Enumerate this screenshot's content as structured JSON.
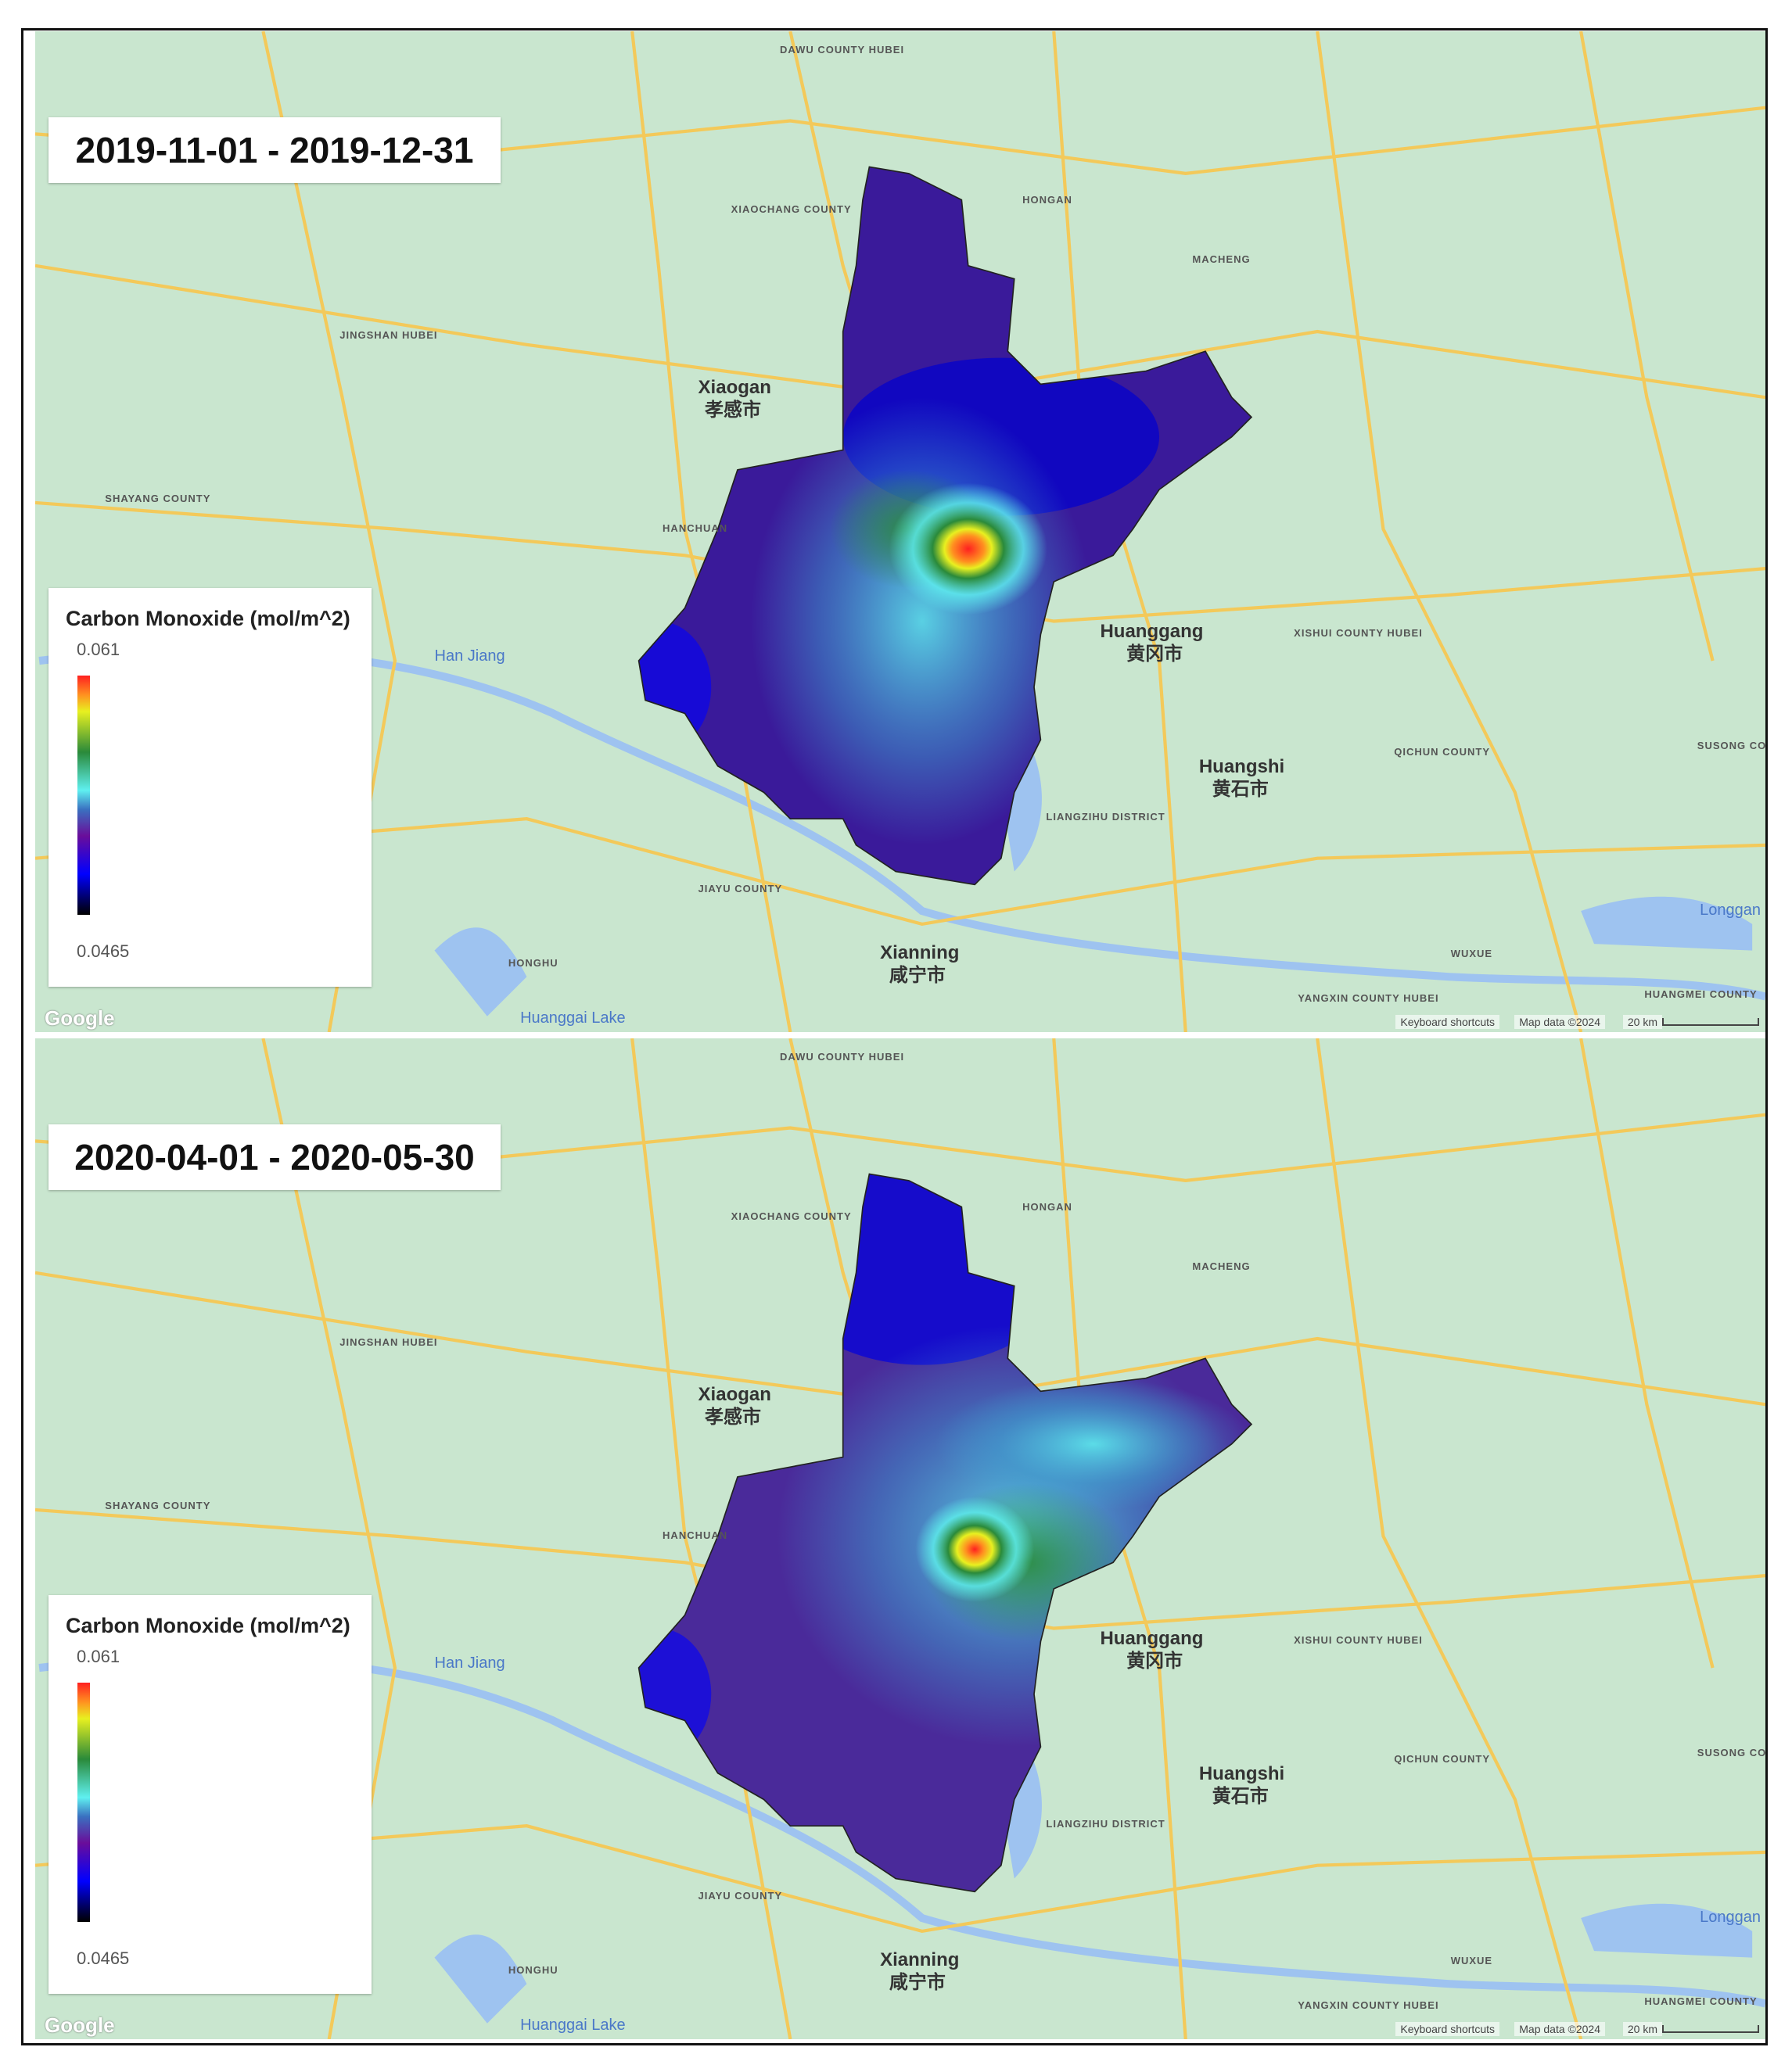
{
  "panels": [
    {
      "date_range": "2019-11-01 - 2019-12-31",
      "legend": {
        "title": "Carbon Monoxide (mol/m^2)",
        "max": "0.061",
        "min": "0.0465"
      },
      "hotspot": "strong"
    },
    {
      "date_range": "2020-04-01 - 2020-05-30",
      "legend": {
        "title": "Carbon Monoxide (mol/m^2)",
        "max": "0.061",
        "min": "0.0465"
      },
      "hotspot": "weak"
    }
  ],
  "map_labels": {
    "xiaogan": "Xiaogan",
    "xiaogan_cn": "孝感市",
    "huanggang": "Huanggang",
    "huanggang_cn": "黄冈市",
    "huangshi": "Huangshi",
    "huangshi_cn": "黄石市",
    "xianning": "Xianning",
    "xianning_cn": "咸宁市",
    "han_jiang": "Han Jiang",
    "huanggai_lake": "Huanggai Lake",
    "dawu": "DAWU COUNTY HUBEI",
    "xiaochang": "XIAOCHANG COUNTY",
    "hongan": "HONGAN",
    "macheng": "MACHENG",
    "jingshan": "JINGSHAN HUBEI",
    "shayang": "SHAYANG COUNTY",
    "hanchuan": "HANCHUAN",
    "xishui": "XISHUI COUNTY HUBEI",
    "qichun": "QICHUN COUNTY",
    "susong": "SUSONG COUNTY",
    "liangzihu": "LIANGZIHU DISTRICT",
    "jiayu": "JIAYU COUNTY",
    "honghu": "HONGHU",
    "wuxue": "WUXUE",
    "yangxin": "YANGXIN COUNTY HUBEI",
    "huangmei": "HUANGMEI COUNTY",
    "longgan": "Longgan"
  },
  "attribution": {
    "google": "Google",
    "keyboard_shortcuts": "Keyboard shortcuts",
    "map_data": "Map data ©2024",
    "scale": "20 km"
  },
  "colors": {
    "map_land": "#c9e6cf",
    "road": "#f3c95a",
    "water": "#9ec3f0",
    "colormap": [
      "#000000",
      "#0000ff",
      "#6a0d9a",
      "#5ff0f0",
      "#2a8a3a",
      "#e8f020",
      "#ff2020"
    ]
  }
}
